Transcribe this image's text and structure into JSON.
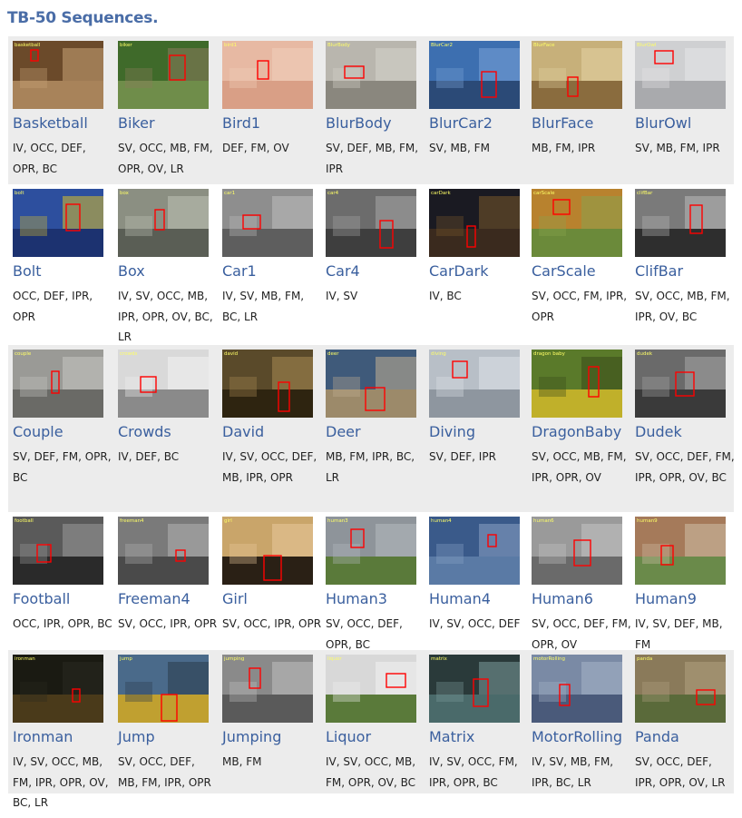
{
  "heading": "TB-50 Sequences.",
  "colors": {
    "heading": "#4a6da7",
    "name": "#3a5f9e",
    "row_shade": "#ececec",
    "bbox": "#ff0000"
  },
  "rows": [
    {
      "shaded": true,
      "sequences": [
        {
          "name": "Basketball",
          "attributes": "IV, OCC, DEF, OPR, BC",
          "thumb_label": "basketball",
          "palette": [
            "#6b4a2a",
            "#a8835a",
            "#c9a477"
          ]
        },
        {
          "name": "Biker",
          "attributes": "SV, OCC, MB, FM, OPR, OV, LR",
          "thumb_label": "biker",
          "palette": [
            "#3f6a2a",
            "#6f8d4a",
            "#8c7a5c"
          ]
        },
        {
          "name": "Bird1",
          "attributes": "DEF, FM, OV",
          "thumb_label": "bird1",
          "palette": [
            "#e7b9a3",
            "#d99f86",
            "#f0d0bb"
          ]
        },
        {
          "name": "BlurBody",
          "attributes": "SV, DEF, MB, FM, IPR",
          "thumb_label": "BlurBody",
          "palette": [
            "#b9b6ae",
            "#8a877e",
            "#d6d3cc"
          ]
        },
        {
          "name": "BlurCar2",
          "attributes": "SV, MB, FM",
          "thumb_label": "BlurCar2",
          "palette": [
            "#3d6fb0",
            "#2b4a77",
            "#7aa3d8"
          ]
        },
        {
          "name": "BlurFace",
          "attributes": "MB, FM, IPR",
          "thumb_label": "BlurFace",
          "palette": [
            "#c7b07a",
            "#8a6c3e",
            "#e3d3a4"
          ]
        },
        {
          "name": "BlurOwl",
          "attributes": "SV, MB, FM, IPR",
          "thumb_label": "BlurOwl",
          "palette": [
            "#cfd0d2",
            "#a9aaad",
            "#e6e6e8"
          ]
        }
      ]
    },
    {
      "shaded": false,
      "sequences": [
        {
          "name": "Bolt",
          "attributes": "OCC, DEF, IPR, OPR",
          "thumb_label": "bolt",
          "palette": [
            "#2d4f9e",
            "#1c3270",
            "#d9c02c"
          ]
        },
        {
          "name": "Box",
          "attributes": "IV, SV, OCC, MB, IPR, OPR, OV, BC, LR",
          "thumb_label": "box",
          "palette": [
            "#8b8f82",
            "#5a5e55",
            "#c0c2b7"
          ]
        },
        {
          "name": "Car1",
          "attributes": "IV, SV, MB, FM, BC, LR",
          "thumb_label": "car1",
          "palette": [
            "#8e8e8e",
            "#5e5e5e",
            "#bdbdbd"
          ]
        },
        {
          "name": "Car4",
          "attributes": "IV, SV",
          "thumb_label": "car4",
          "palette": [
            "#6c6c6c",
            "#3e3e3e",
            "#a7a7a7"
          ]
        },
        {
          "name": "CarDark",
          "attributes": "IV, BC",
          "thumb_label": "carDark",
          "palette": [
            "#1a1a22",
            "#3a2a1e",
            "#7a5a2a"
          ]
        },
        {
          "name": "CarScale",
          "attributes": "SV, OCC, FM, IPR, OPR",
          "thumb_label": "carScale",
          "palette": [
            "#b8822e",
            "#6b8a3a",
            "#8aa34e"
          ]
        },
        {
          "name": "ClifBar",
          "attributes": "SV, OCC, MB, FM, IPR, OV, BC",
          "thumb_label": "clifBar",
          "palette": [
            "#7a7a7a",
            "#2e2e2e",
            "#b9b9b9"
          ]
        }
      ]
    },
    {
      "shaded": true,
      "sequences": [
        {
          "name": "Couple",
          "attributes": "SV, DEF, FM, OPR, BC",
          "thumb_label": "couple",
          "palette": [
            "#9a9a96",
            "#6a6a66",
            "#c7c7c2"
          ]
        },
        {
          "name": "Crowds",
          "attributes": "IV, DEF, BC",
          "thumb_label": "crowds",
          "palette": [
            "#d9d9d9",
            "#8a8a8a",
            "#f2f2f2"
          ]
        },
        {
          "name": "David",
          "attributes": "IV, SV, OCC, DEF, MB, IPR, OPR",
          "thumb_label": "david",
          "palette": [
            "#5a4a2a",
            "#2e2410",
            "#a88a52"
          ]
        },
        {
          "name": "Deer",
          "attributes": "MB, FM, IPR, BC, LR",
          "thumb_label": "deer",
          "palette": [
            "#3f5a7a",
            "#9c8a6a",
            "#c2b091"
          ]
        },
        {
          "name": "Diving",
          "attributes": "SV, DEF, IPR",
          "thumb_label": "diving",
          "palette": [
            "#b8bfc7",
            "#8e969f",
            "#dde2e7"
          ]
        },
        {
          "name": "DragonBaby",
          "attributes": "SV, OCC, MB, FM, IPR, OPR, OV",
          "thumb_label": "dragon baby",
          "palette": [
            "#5a7a2a",
            "#c0b02a",
            "#3a4a1a"
          ]
        },
        {
          "name": "Dudek",
          "attributes": "SV, OCC, DEF, FM, IPR, OPR, OV, BC",
          "thumb_label": "dudek",
          "palette": [
            "#6a6a6a",
            "#3a3a3a",
            "#a5a5a5"
          ]
        }
      ]
    },
    {
      "shaded": false,
      "sequences": [
        {
          "name": "Football",
          "attributes": "OCC, IPR, OPR, BC",
          "thumb_label": "football",
          "palette": [
            "#5a5a5a",
            "#2a2a2a",
            "#9a9a9a"
          ]
        },
        {
          "name": "Freeman4",
          "attributes": "SV, OCC, IPR, OPR",
          "thumb_label": "freeman4",
          "palette": [
            "#7a7a7a",
            "#4a4a4a",
            "#b2b2b2"
          ]
        },
        {
          "name": "Girl",
          "attributes": "SV, OCC, IPR, OPR",
          "thumb_label": "girl",
          "palette": [
            "#c9a56a",
            "#2a2015",
            "#e8c99a"
          ]
        },
        {
          "name": "Human3",
          "attributes": "SV, OCC, DEF, OPR, BC",
          "thumb_label": "human3",
          "palette": [
            "#8e949a",
            "#5a7a3a",
            "#b4bac0"
          ]
        },
        {
          "name": "Human4",
          "attributes": "IV, SV, OCC, DEF",
          "thumb_label": "human4",
          "palette": [
            "#3a5a8a",
            "#5a7aa5",
            "#8aa3c5"
          ]
        },
        {
          "name": "Human6",
          "attributes": "SV, OCC, DEF, FM, OPR, OV",
          "thumb_label": "human6",
          "palette": [
            "#9a9a9a",
            "#6a6a6a",
            "#c5c5c5"
          ]
        },
        {
          "name": "Human9",
          "attributes": "IV, SV, DEF, MB, FM",
          "thumb_label": "human9",
          "palette": [
            "#a57a5a",
            "#6a8a4a",
            "#d0c0a8"
          ]
        }
      ]
    },
    {
      "shaded": true,
      "sequences": [
        {
          "name": "Ironman",
          "attributes": "IV, SV, OCC, MB, FM, IPR, OPR, OV, BC, LR",
          "thumb_label": "ironman",
          "palette": [
            "#1a1a12",
            "#4a3a1a",
            "#2a2a20"
          ]
        },
        {
          "name": "Jump",
          "attributes": "SV, OCC, DEF, MB, FM, IPR, OPR",
          "thumb_label": "jump",
          "palette": [
            "#4a6a8a",
            "#c0a030",
            "#2a3a4a"
          ]
        },
        {
          "name": "Jumping",
          "attributes": "MB, FM",
          "thumb_label": "jumping",
          "palette": [
            "#8a8a8a",
            "#5a5a5a",
            "#c0c0c0"
          ]
        },
        {
          "name": "Liquor",
          "attributes": "IV, SV, OCC, MB, FM, OPR, OV, BC",
          "thumb_label": "liquor",
          "palette": [
            "#d8d8d8",
            "#5a7a3a",
            "#f2f2f2"
          ]
        },
        {
          "name": "Matrix",
          "attributes": "IV, SV, OCC, FM, IPR, OPR, BC",
          "thumb_label": "matrix",
          "palette": [
            "#2a3a3a",
            "#4a6a6a",
            "#7a9a9a"
          ]
        },
        {
          "name": "MotorRolling",
          "attributes": "IV, SV, MB, FM, IPR, BC, LR",
          "thumb_label": "motorRolling",
          "palette": [
            "#7a8aa5",
            "#4a5a7a",
            "#a5b5c8"
          ]
        },
        {
          "name": "Panda",
          "attributes": "SV, OCC, DEF, IPR, OPR, OV, LR",
          "thumb_label": "panda",
          "palette": [
            "#8a7a5a",
            "#5a6a3a",
            "#b0a080"
          ]
        }
      ]
    }
  ]
}
